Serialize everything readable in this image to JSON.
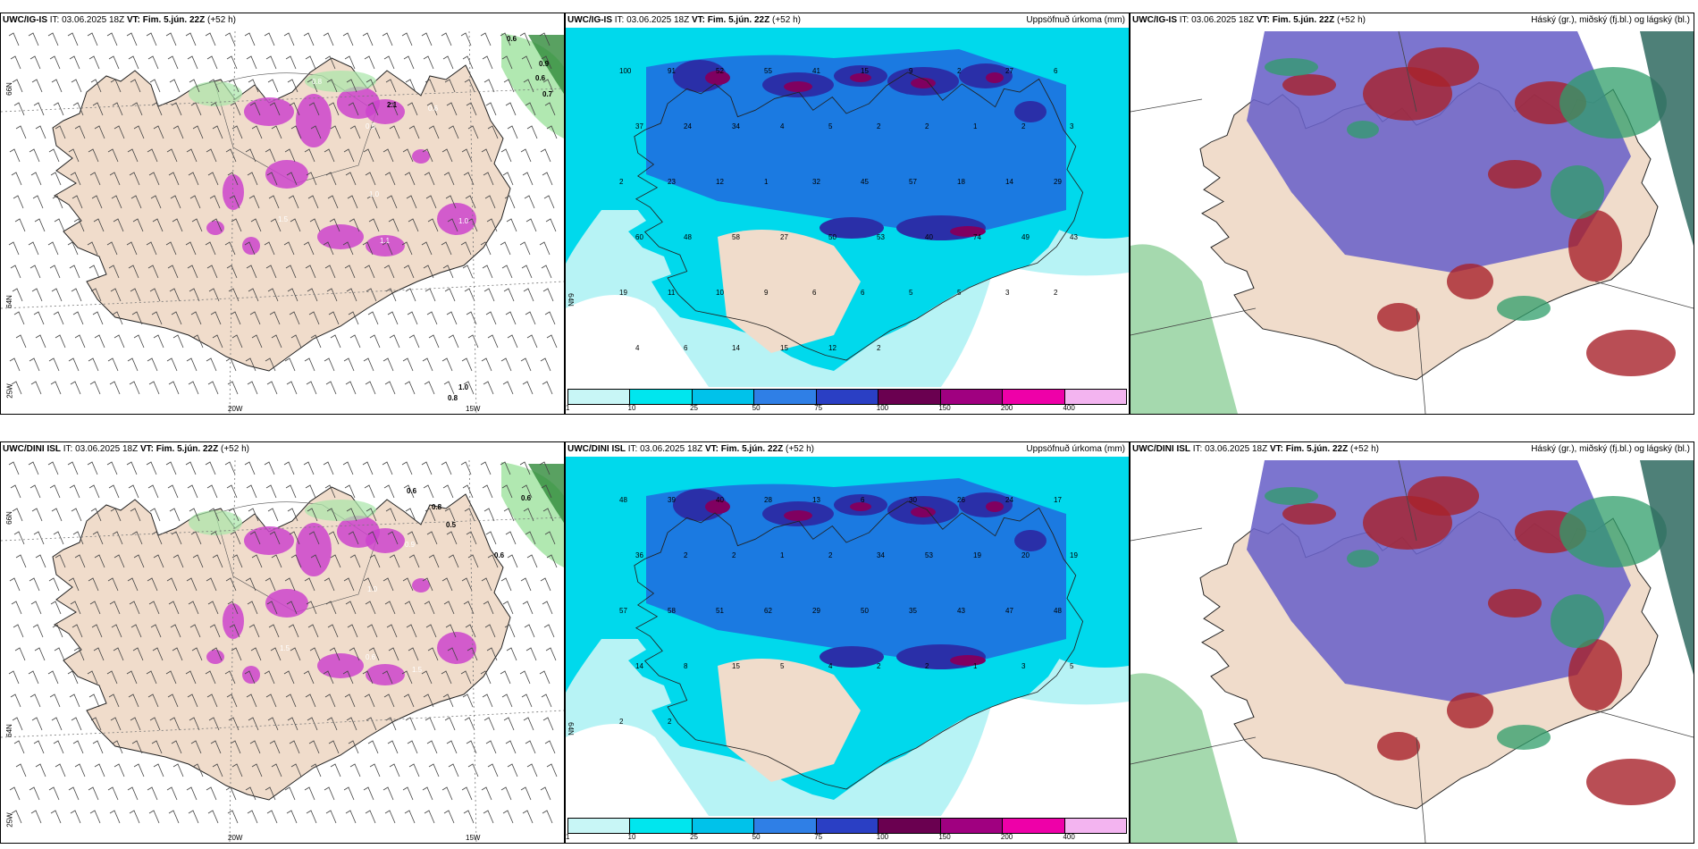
{
  "panels": [
    {
      "id": "tl",
      "model": "UWC/IG-IS",
      "it_label": "IT:",
      "it_value": "03.06.2025 18Z",
      "vt_label": "VT:",
      "vt_value": "Fim. 5.jún. 22Z",
      "lead": "(+52 h)",
      "right_title": "",
      "axis_labels": [
        "66N",
        "64N",
        "25W",
        "20W",
        "15W"
      ],
      "values": [
        "0.6",
        "0.9",
        "0.6",
        "0.7",
        "0.8",
        "2.1",
        "0.6",
        "1.0",
        "1.5",
        "1.1",
        "1.0",
        "0.5",
        "0.8",
        "1.0",
        "0.8"
      ]
    },
    {
      "id": "tm",
      "model": "UWC/IG-IS",
      "it_label": "IT:",
      "it_value": "03.06.2025 18Z",
      "vt_label": "VT:",
      "vt_value": "Fim. 5.jún. 22Z",
      "lead": "(+52 h)",
      "right_title": "Uppsöfnuð úrkoma (mm)",
      "axis_labels": [
        "64N"
      ],
      "values": [
        "100",
        "91",
        "52",
        "55",
        "41",
        "15",
        "9",
        "2",
        "27",
        "6",
        "37",
        "24",
        "34",
        "4",
        "5",
        "2",
        "2",
        "1",
        "2",
        "3",
        "2",
        "23",
        "12",
        "1",
        "32",
        "45",
        "57",
        "18",
        "14",
        "29",
        "60",
        "48",
        "58",
        "27",
        "50",
        "53",
        "40",
        "74",
        "49",
        "43",
        "19",
        "11",
        "10",
        "9",
        "6",
        "6",
        "5",
        "5",
        "3",
        "2",
        "4",
        "6",
        "14",
        "15",
        "12",
        "2"
      ]
    },
    {
      "id": "tr",
      "model": "UWC/IG-IS",
      "it_label": "IT:",
      "it_value": "03.06.2025 18Z",
      "vt_label": "VT:",
      "vt_value": "Fim. 5.jún. 22Z",
      "lead": "(+52 h)",
      "right_title": "Háský (gr.), miðský (fj.bl.) og lágský (bl.)",
      "axis_labels": [],
      "values": []
    },
    {
      "id": "bl",
      "model": "UWC/DINI ISL",
      "it_label": "IT:",
      "it_value": "03.06.2025 18Z",
      "vt_label": "VT:",
      "vt_value": "Fim. 5.jún. 22Z",
      "lead": "(+52 h)",
      "right_title": "",
      "axis_labels": [
        "66N",
        "64N",
        "25W",
        "20W",
        "15W"
      ],
      "values": [
        "0.6",
        "0.8",
        "0.6",
        "0.5",
        "0.6",
        "1.5",
        "0.6",
        "1.0",
        "0.9",
        "1.5"
      ]
    },
    {
      "id": "bm",
      "model": "UWC/DINI ISL",
      "it_label": "IT:",
      "it_value": "03.06.2025 18Z",
      "vt_label": "VT:",
      "vt_value": "Fim. 5.jún. 22Z",
      "lead": "(+52 h)",
      "right_title": "Uppsöfnuð úrkoma (mm)",
      "axis_labels": [
        "64N"
      ],
      "values": [
        "48",
        "39",
        "40",
        "28",
        "13",
        "6",
        "30",
        "26",
        "24",
        "17",
        "36",
        "2",
        "2",
        "1",
        "2",
        "34",
        "53",
        "19",
        "20",
        "19",
        "57",
        "58",
        "51",
        "62",
        "29",
        "50",
        "35",
        "43",
        "47",
        "48",
        "14",
        "8",
        "15",
        "5",
        "4",
        "2",
        "2",
        "1",
        "3",
        "5",
        "2",
        "2"
      ]
    },
    {
      "id": "br",
      "model": "UWC/DINI ISL",
      "it_label": "IT:",
      "it_value": "03.06.2025 18Z",
      "vt_label": "VT:",
      "vt_value": "Fim. 5.jún. 22Z",
      "lead": "(+52 h)",
      "right_title": "Háský (gr.), miðský (fj.bl.) og lágský (bl.)",
      "axis_labels": [],
      "values": []
    }
  ],
  "colorbar": {
    "ticks": [
      "1",
      "10",
      "25",
      "50",
      "75",
      "100",
      "150",
      "200",
      "400"
    ],
    "colors": [
      "#c8f6f6",
      "#00e6ee",
      "#00c2ea",
      "#2f7fe6",
      "#2a3fc4",
      "#6a0050",
      "#a00080",
      "#ee00a8",
      "#f3b4f0"
    ]
  },
  "colors": {
    "land": "#f0dccb",
    "precip_light": "#b7f3f5",
    "precip_mid": "#00d9ec",
    "precip_blue": "#1e6fe0",
    "precip_dark": "#2a2fa8",
    "precip_purple": "#800060",
    "wind_green": "#a8e6a8",
    "wind_magenta": "#cc44cc",
    "cloud_high": "#2f9e6a",
    "cloud_mid": "#6a62c8",
    "cloud_low": "#a8222a"
  }
}
